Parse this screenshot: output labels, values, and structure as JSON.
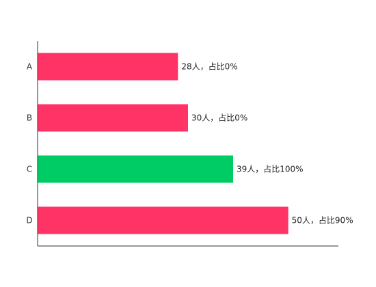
{
  "chart_data": {
    "type": "bar",
    "orientation": "horizontal",
    "title": "",
    "xlabel": "",
    "ylabel": "",
    "categories": [
      "A",
      "B",
      "C",
      "D"
    ],
    "values": [
      28,
      30,
      39,
      50
    ],
    "data_labels": [
      "28人，占比0%",
      "30人，占比0%",
      "39人，占比100%",
      "50人，占比90%"
    ],
    "bar_colors": [
      "#ff3366",
      "#ff3366",
      "#00cc66",
      "#ff3366"
    ],
    "xlim": [
      0,
      60
    ],
    "grid": false,
    "legend": "none"
  }
}
